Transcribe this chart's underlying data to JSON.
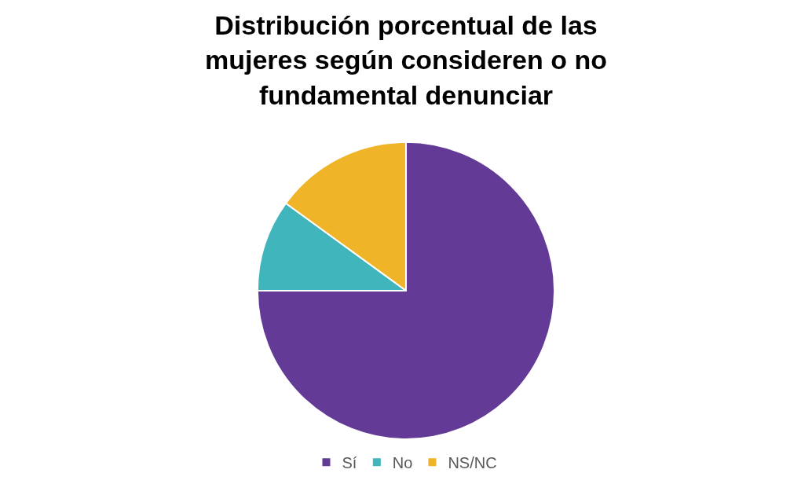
{
  "chart_data": {
    "type": "pie",
    "title": "Distribución porcentual de las mujeres según consideren o no fundamental denunciar",
    "categories": [
      "Sí",
      "No",
      "NS/NC"
    ],
    "values": [
      75,
      10,
      15
    ],
    "colors": [
      "#633b96",
      "#40b5bc",
      "#f0b429"
    ],
    "legend": "bottom"
  }
}
